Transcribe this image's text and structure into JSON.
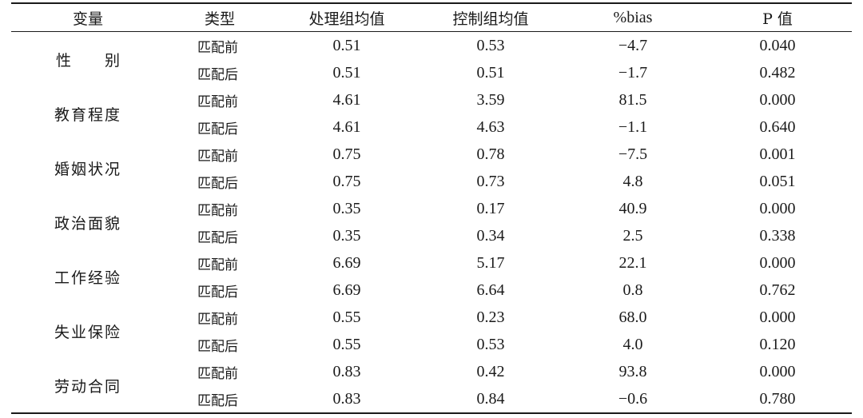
{
  "table": {
    "headers": [
      "变量",
      "类型",
      "处理组均值",
      "控制组均值",
      "%bias",
      "P 值"
    ],
    "groups": [
      {
        "variable": "性　别",
        "rows": [
          {
            "type": "匹配前",
            "treat": "0.51",
            "control": "0.53",
            "bias": "−4.7",
            "p": "0.040"
          },
          {
            "type": "匹配后",
            "treat": "0.51",
            "control": "0.51",
            "bias": "−1.7",
            "p": "0.482"
          }
        ]
      },
      {
        "variable": "教育程度",
        "rows": [
          {
            "type": "匹配前",
            "treat": "4.61",
            "control": "3.59",
            "bias": "81.5",
            "p": "0.000"
          },
          {
            "type": "匹配后",
            "treat": "4.61",
            "control": "4.63",
            "bias": "−1.1",
            "p": "0.640"
          }
        ]
      },
      {
        "variable": "婚姻状况",
        "rows": [
          {
            "type": "匹配前",
            "treat": "0.75",
            "control": "0.78",
            "bias": "−7.5",
            "p": "0.001"
          },
          {
            "type": "匹配后",
            "treat": "0.75",
            "control": "0.73",
            "bias": "4.8",
            "p": "0.051"
          }
        ]
      },
      {
        "variable": "政治面貌",
        "rows": [
          {
            "type": "匹配前",
            "treat": "0.35",
            "control": "0.17",
            "bias": "40.9",
            "p": "0.000"
          },
          {
            "type": "匹配后",
            "treat": "0.35",
            "control": "0.34",
            "bias": "2.5",
            "p": "0.338"
          }
        ]
      },
      {
        "variable": "工作经验",
        "rows": [
          {
            "type": "匹配前",
            "treat": "6.69",
            "control": "5.17",
            "bias": "22.1",
            "p": "0.000"
          },
          {
            "type": "匹配后",
            "treat": "6.69",
            "control": "6.64",
            "bias": "0.8",
            "p": "0.762"
          }
        ]
      },
      {
        "variable": "失业保险",
        "rows": [
          {
            "type": "匹配前",
            "treat": "0.55",
            "control": "0.23",
            "bias": "68.0",
            "p": "0.000"
          },
          {
            "type": "匹配后",
            "treat": "0.55",
            "control": "0.53",
            "bias": "4.0",
            "p": "0.120"
          }
        ]
      },
      {
        "variable": "劳动合同",
        "rows": [
          {
            "type": "匹配前",
            "treat": "0.83",
            "control": "0.42",
            "bias": "93.8",
            "p": "0.000"
          },
          {
            "type": "匹配后",
            "treat": "0.83",
            "control": "0.84",
            "bias": "−0.6",
            "p": "0.780"
          }
        ]
      }
    ]
  }
}
